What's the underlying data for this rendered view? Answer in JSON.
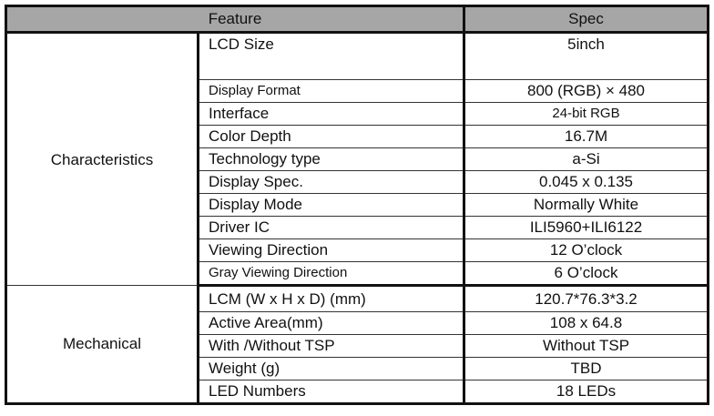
{
  "header": {
    "feature": "Feature",
    "spec": "Spec"
  },
  "groups": [
    {
      "name": "Characteristics",
      "rows": [
        {
          "feature": "LCD Size",
          "spec": "5inch"
        },
        {
          "feature": "Display Format",
          "spec": "800 (RGB) × 480"
        },
        {
          "feature": "Interface",
          "spec": "24-bit RGB"
        },
        {
          "feature": "Color Depth",
          "spec": "16.7M"
        },
        {
          "feature": "Technology type",
          "spec": "a-Si"
        },
        {
          "feature": "Display Spec.",
          "spec": "0.045 x 0.135"
        },
        {
          "feature": "Display Mode",
          "spec": "Normally White"
        },
        {
          "feature": "Driver IC",
          "spec": "ILI5960+ILI6122"
        },
        {
          "feature": "Viewing Direction",
          "spec": "12 O’clock"
        },
        {
          "feature": "Gray Viewing Direction",
          "spec": "6 O’clock"
        }
      ]
    },
    {
      "name": "Mechanical",
      "rows": [
        {
          "feature": "LCM (W x H x D) (mm)",
          "spec": "120.7*76.3*3.2"
        },
        {
          "feature": "Active Area(mm)",
          "spec": "108 x 64.8"
        },
        {
          "feature": "With /Without TSP",
          "spec": "Without TSP"
        },
        {
          "feature": "Weight (g)",
          "spec": "TBD"
        },
        {
          "feature": "LED Numbers",
          "spec": "18 LEDs"
        }
      ]
    }
  ]
}
